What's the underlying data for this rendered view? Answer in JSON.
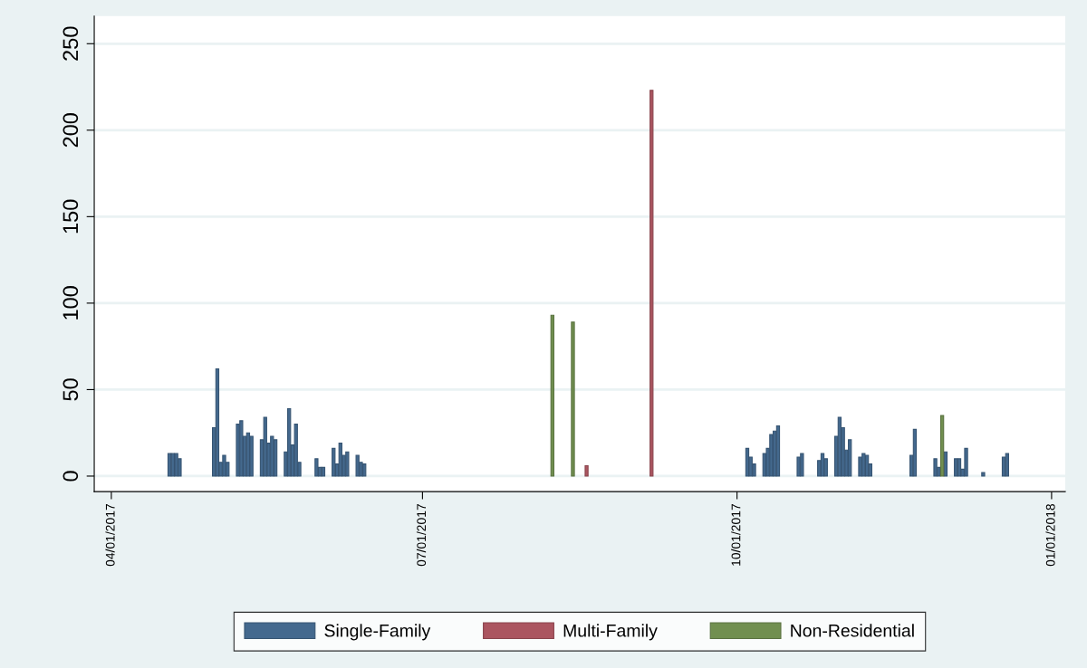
{
  "chart_data": {
    "type": "bar",
    "series": [
      {
        "name": "Single-Family",
        "color": "#44698e",
        "x": [
          "2017-04-18",
          "2017-04-19",
          "2017-04-20",
          "2017-04-21",
          "2017-05-01",
          "2017-05-02",
          "2017-05-03",
          "2017-05-04",
          "2017-05-05",
          "2017-05-08",
          "2017-05-09",
          "2017-05-10",
          "2017-05-11",
          "2017-05-12",
          "2017-05-15",
          "2017-05-16",
          "2017-05-17",
          "2017-05-18",
          "2017-05-19",
          "2017-05-22",
          "2017-05-23",
          "2017-05-24",
          "2017-05-25",
          "2017-05-26",
          "2017-05-31",
          "2017-06-01",
          "2017-06-02",
          "2017-06-05",
          "2017-06-06",
          "2017-06-07",
          "2017-06-08",
          "2017-06-09",
          "2017-06-12",
          "2017-06-13",
          "2017-06-14",
          "2017-10-04",
          "2017-10-05",
          "2017-10-06",
          "2017-10-09",
          "2017-10-10",
          "2017-10-11",
          "2017-10-12",
          "2017-10-13",
          "2017-10-19",
          "2017-10-20",
          "2017-10-25",
          "2017-10-26",
          "2017-10-27",
          "2017-10-30",
          "2017-10-31",
          "2017-11-01",
          "2017-11-02",
          "2017-11-03",
          "2017-11-06",
          "2017-11-07",
          "2017-11-08",
          "2017-11-09",
          "2017-11-21",
          "2017-11-22",
          "2017-11-28",
          "2017-11-29",
          "2017-12-01",
          "2017-12-04",
          "2017-12-05",
          "2017-12-06",
          "2017-12-07",
          "2017-12-12",
          "2017-12-18",
          "2017-12-19"
        ],
        "values": [
          13,
          13,
          13,
          10,
          28,
          62,
          8,
          12,
          8,
          30,
          32,
          23,
          25,
          23,
          21,
          34,
          19,
          23,
          21,
          14,
          39,
          18,
          30,
          8,
          10,
          5,
          5,
          16,
          7,
          19,
          12,
          14,
          12,
          8,
          7,
          16,
          11,
          7,
          13,
          16,
          24,
          26,
          29,
          11,
          13,
          9,
          13,
          10,
          23,
          34,
          28,
          15,
          21,
          11,
          13,
          12,
          7,
          12,
          27,
          10,
          5,
          14,
          10,
          10,
          4,
          16,
          2,
          11,
          13
        ]
      },
      {
        "name": "Multi-Family",
        "color": "#ab5560",
        "x": [
          "2017-08-18",
          "2017-09-06"
        ],
        "values": [
          6,
          223
        ]
      },
      {
        "name": "Non-Residential",
        "color": "#718f50",
        "x": [
          "2017-08-08",
          "2017-08-14",
          "2017-11-30"
        ],
        "values": [
          93,
          89,
          35
        ]
      }
    ],
    "xlim": [
      "2017-03-27",
      "2018-01-05"
    ],
    "xticks": [
      {
        "value": "2017-04-01",
        "label": "04/01/2017"
      },
      {
        "value": "2017-07-01",
        "label": "07/01/2017"
      },
      {
        "value": "2017-10-01",
        "label": "10/01/2017"
      },
      {
        "value": "2018-01-01",
        "label": "01/01/2018"
      }
    ],
    "ylim": [
      -9,
      266
    ],
    "yticks": [
      0,
      50,
      100,
      150,
      200,
      250
    ],
    "grid": "y",
    "legend": "bottom"
  }
}
